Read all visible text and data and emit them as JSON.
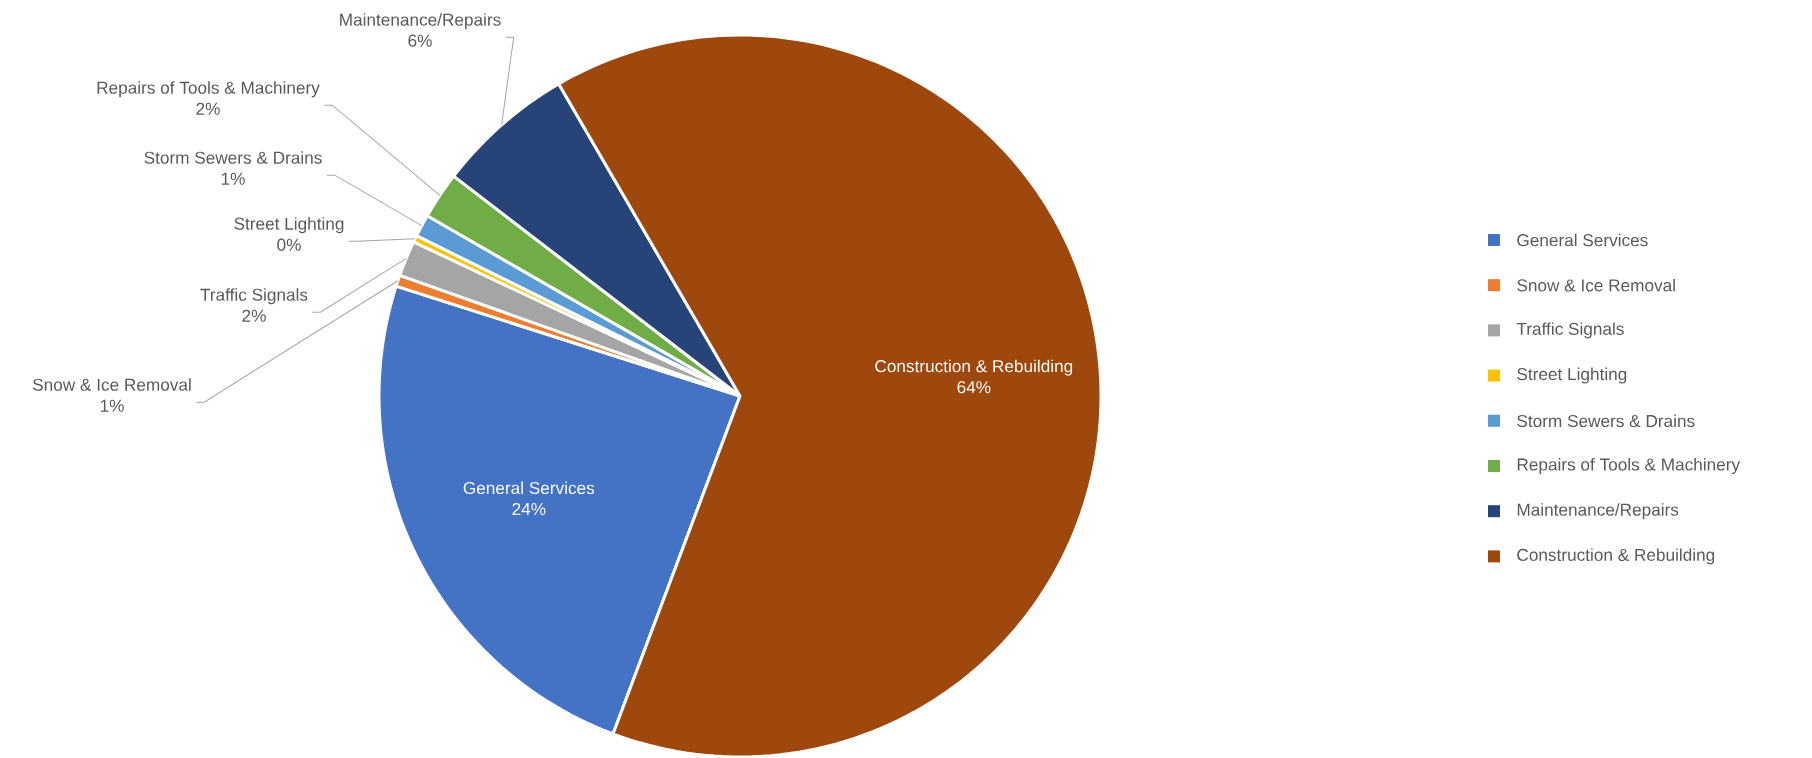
{
  "chart_data": {
    "type": "pie",
    "categories": [
      "General Services",
      "Snow & Ice Removal",
      "Traffic Signals",
      "Street Lighting",
      "Storm Sewers & Drains",
      "Repairs of Tools & Machinery",
      "Maintenance/Repairs",
      "Construction & Rebuilding"
    ],
    "values": [
      24.2,
      0.5,
      1.6,
      0.3,
      1.0,
      2.1,
      6.2,
      64.1
    ],
    "value_labels": [
      "24%",
      "1%",
      "2%",
      "0%",
      "1%",
      "2%",
      "6%",
      "64%"
    ],
    "colors": [
      "#4472c4",
      "#ed7d31",
      "#a5a5a5",
      "#ffc000",
      "#5b9bd5",
      "#70ad47",
      "#264478",
      "#9e480e"
    ],
    "legend": "right"
  }
}
